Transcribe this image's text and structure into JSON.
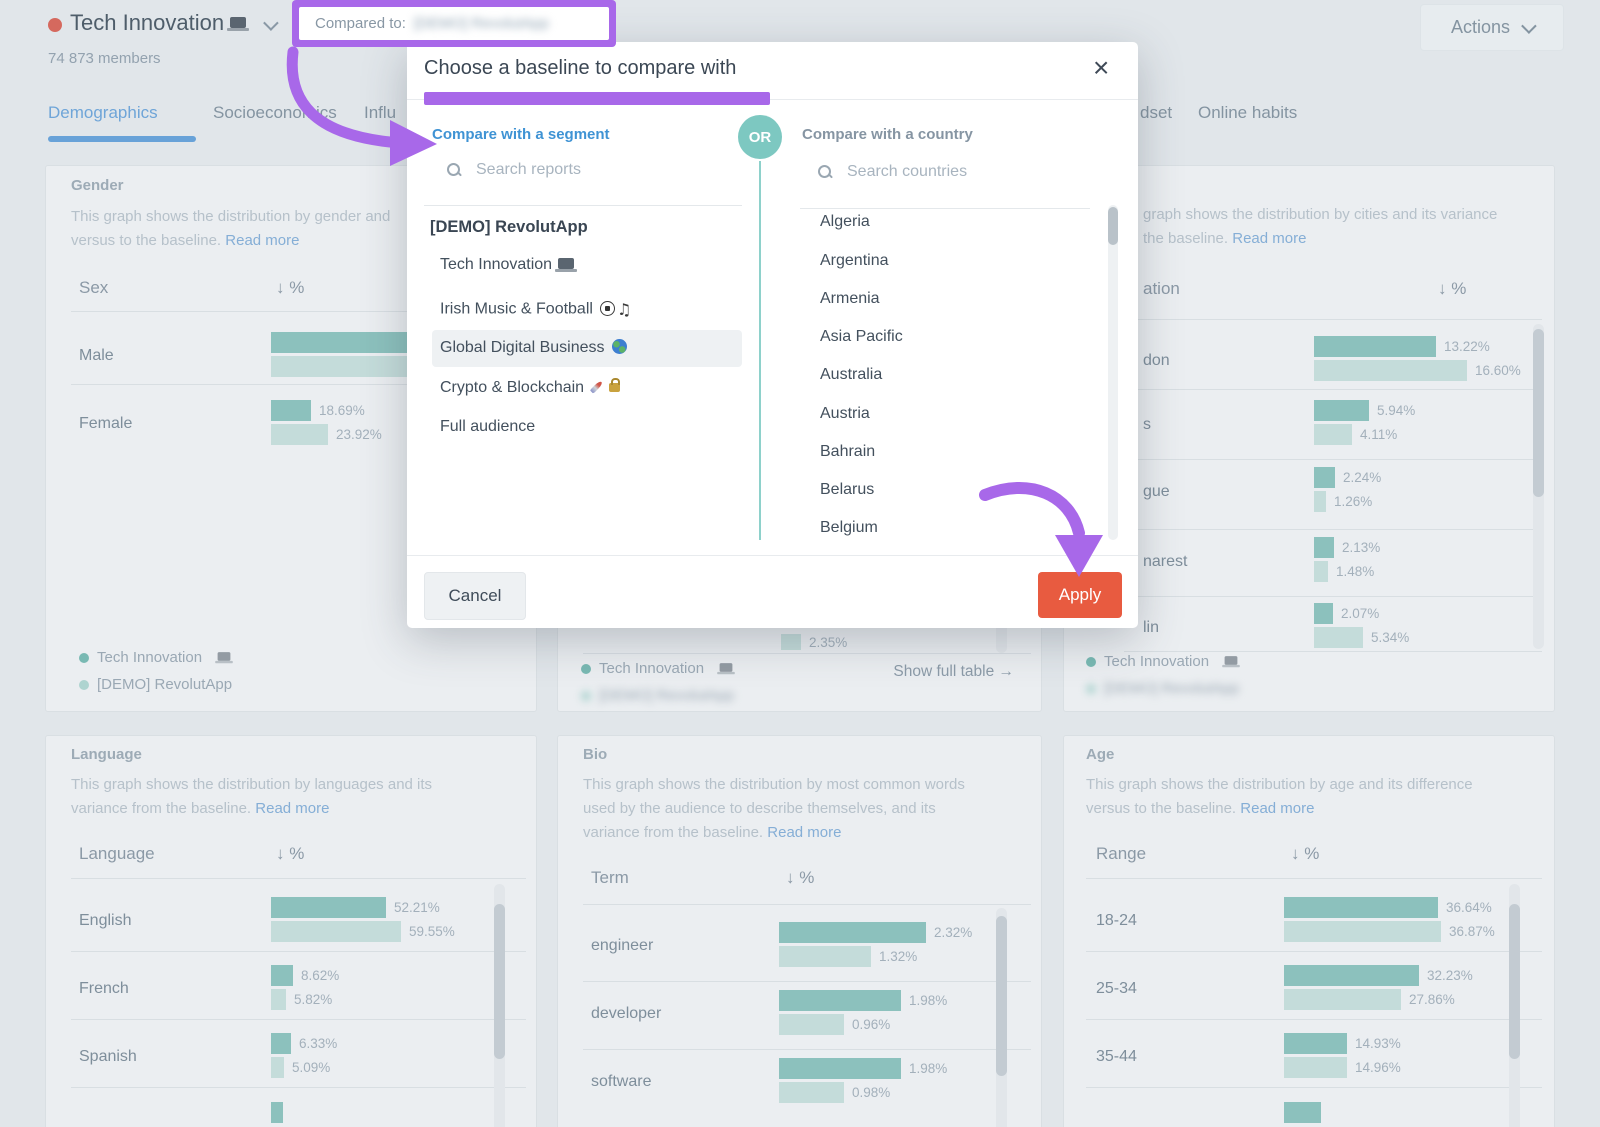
{
  "colors": {
    "accent_purple": "#a868e9",
    "apply_orange": "#e85b40",
    "bar_dark": "#8cc1bd",
    "bar_light": "#c4dcda",
    "tab_active_blue": "#6fa5d8"
  },
  "topbar": {
    "title": "Tech Innovation",
    "members": "74 873 members",
    "compared_label": "Compared to:",
    "compared_value": "[DEMO] RevolutApp",
    "actions": "Actions"
  },
  "tabs": {
    "t1": "Demographics",
    "t2": "Socioeconomics",
    "t3_fragment": "Influ",
    "t4_fragment": "dset",
    "t5": "Online habits"
  },
  "modal": {
    "title": "Choose a baseline to compare with",
    "segment_header": "Compare with a segment",
    "country_header": "Compare with a country",
    "or": "OR",
    "search_reports_placeholder": "Search reports",
    "search_countries_placeholder": "Search countries",
    "segments": {
      "group": "[DEMO] RevolutApp",
      "items": [
        "Tech Innovation",
        "Irish Music & Football",
        "Global Digital Business",
        "Crypto & Blockchain",
        "Full audience"
      ]
    },
    "countries": [
      "Algeria",
      "Argentina",
      "Armenia",
      "Asia Pacific",
      "Australia",
      "Austria",
      "Bahrain",
      "Belarus",
      "Belgium"
    ],
    "cancel": "Cancel",
    "apply": "Apply"
  },
  "legend": {
    "primary": "Tech Innovation",
    "secondary": "[DEMO] RevolutApp"
  },
  "cards": {
    "gender": {
      "title": "Gender",
      "desc1": "This graph shows the distribution by gender and",
      "desc2": "versus to the baseline.",
      "read_more": "Read more",
      "col": "Sex",
      "pct": "↓ %",
      "rows": [
        {
          "label": "Male",
          "w1": 176,
          "w2": 181,
          "v1": "",
          "v2": ""
        },
        {
          "label": "Female",
          "w1": 40,
          "w2": 57,
          "v1": "18.69%",
          "v2": "23.92%"
        }
      ]
    },
    "middle": {
      "partial_value": "2.35%",
      "partial_w": 20,
      "show_full_table": "Show full table",
      "arrow": "→"
    },
    "cities": {
      "desc1": "graph shows the distribution by cities and its variance",
      "desc2": "the baseline.",
      "read_more": "Read more",
      "col_fragment": "ation",
      "pct": "↓ %",
      "rows": [
        {
          "label": "don",
          "w1": 122,
          "w2": 153,
          "v1": "13.22%",
          "v2": "16.60%"
        },
        {
          "label": "s",
          "w1": 55,
          "w2": 38,
          "v1": "5.94%",
          "v2": "4.11%"
        },
        {
          "label": "gue",
          "w1": 21,
          "w2": 12,
          "v1": "2.24%",
          "v2": "1.26%"
        },
        {
          "label": "narest",
          "w1": 20,
          "w2": 14,
          "v1": "2.13%",
          "v2": "1.48%"
        },
        {
          "label": "lin",
          "w1": 19,
          "w2": 49,
          "v1": "2.07%",
          "v2": "5.34%"
        }
      ]
    },
    "language": {
      "title": "Language",
      "desc1": "This graph shows the distribution by languages and its",
      "desc2": "variance from the baseline.",
      "read_more": "Read more",
      "col": "Language",
      "pct": "↓ %",
      "partial_w": 12,
      "rows": [
        {
          "label": "English",
          "w1": 115,
          "w2": 130,
          "v1": "52.21%",
          "v2": "59.55%"
        },
        {
          "label": "French",
          "w1": 22,
          "w2": 15,
          "v1": "8.62%",
          "v2": "5.82%"
        },
        {
          "label": "Spanish",
          "w1": 20,
          "w2": 13,
          "v1": "6.33%",
          "v2": "5.09%"
        }
      ]
    },
    "bio": {
      "title": "Bio",
      "desc1": "This graph shows the distribution by most common words",
      "desc2": "used by the audience to describe themselves, and its",
      "desc3": "variance from the baseline.",
      "read_more": "Read more",
      "col": "Term",
      "pct": "↓ %",
      "rows": [
        {
          "label": "engineer",
          "w1": 147,
          "w2": 92,
          "v1": "2.32%",
          "v2": "1.32%"
        },
        {
          "label": "developer",
          "w1": 122,
          "w2": 65,
          "v1": "1.98%",
          "v2": "0.96%"
        },
        {
          "label": "software",
          "w1": 122,
          "w2": 65,
          "v1": "1.98%",
          "v2": "0.98%"
        }
      ]
    },
    "age": {
      "title": "Age",
      "desc1": "This graph shows the distribution by age and its difference",
      "desc2": "versus to the baseline.",
      "read_more": "Read more",
      "col": "Range",
      "pct": "↓ %",
      "partial_w": 37,
      "rows": [
        {
          "label": "18-24",
          "w1": 154,
          "w2": 157,
          "v1": "36.64%",
          "v2": "36.87%"
        },
        {
          "label": "25-34",
          "w1": 135,
          "w2": 117,
          "v1": "32.23%",
          "v2": "27.86%"
        },
        {
          "label": "35-44",
          "w1": 63,
          "w2": 63,
          "v1": "14.93%",
          "v2": "14.96%"
        }
      ]
    }
  }
}
